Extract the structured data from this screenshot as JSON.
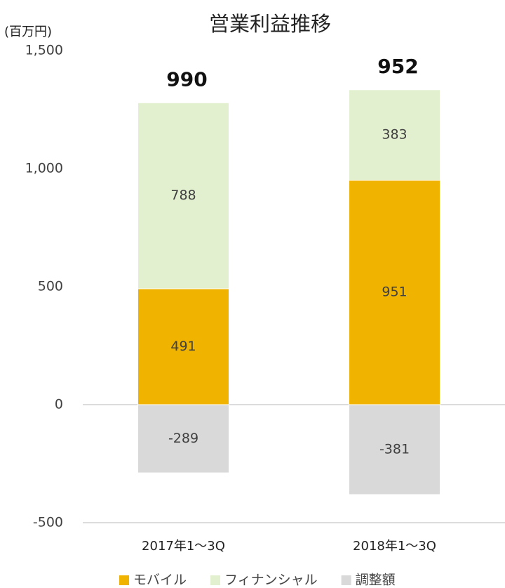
{
  "chart_data": {
    "type": "stacked_bar",
    "title": "営業利益推移",
    "y_label": "(百万円)",
    "categories": [
      "2017年1～3Q",
      "2018年1～3Q"
    ],
    "series": [
      {
        "name": "モバイル",
        "color": "#f0b400",
        "values": [
          491,
          951
        ]
      },
      {
        "name": "フィナンシャル",
        "color": "#e2f0d0",
        "values": [
          788,
          383
        ]
      },
      {
        "name": "調整額",
        "color": "#d9d9d9",
        "values": [
          -289,
          -381
        ]
      }
    ],
    "totals": [
      990,
      952
    ],
    "ylim": [
      -500,
      1500
    ],
    "yticks": [
      -500,
      0,
      500,
      {
        "value": 1000,
        "label": "1,000"
      },
      {
        "value": 1500,
        "label": "1,500"
      }
    ],
    "grid": false,
    "legend": "bottom"
  }
}
